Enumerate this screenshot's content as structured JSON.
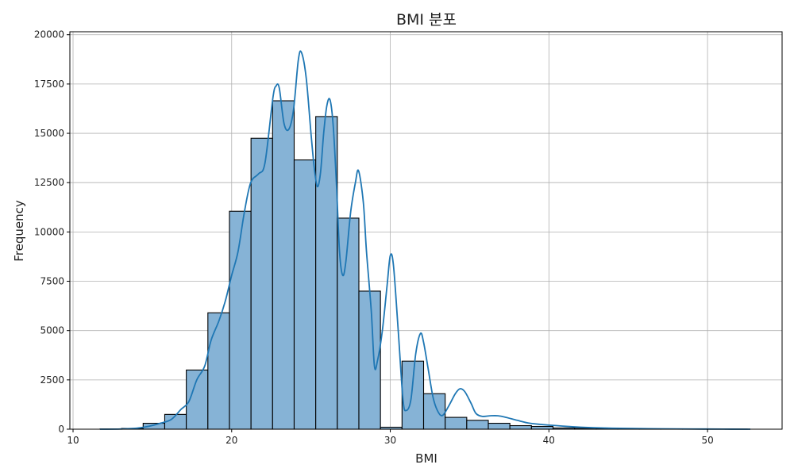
{
  "chart_data": {
    "type": "bar",
    "title": "BMI 분포",
    "xlabel": "BMI",
    "ylabel": "Frequency",
    "xlim": [
      9.8,
      54.7
    ],
    "ylim": [
      0,
      20150
    ],
    "grid": true,
    "x_ticks": [
      10,
      20,
      30,
      40,
      50
    ],
    "y_ticks": [
      0,
      2500,
      5000,
      7500,
      10000,
      12500,
      15000,
      17500,
      20000
    ],
    "bar_color": "#86b3d6",
    "bar_edge_color": "#000000",
    "kde_color": "#1f77b4",
    "bins": [
      {
        "x0": 11.7,
        "x1": 13.06,
        "value": 10
      },
      {
        "x0": 13.06,
        "x1": 14.42,
        "value": 40
      },
      {
        "x0": 14.42,
        "x1": 15.78,
        "value": 300
      },
      {
        "x0": 15.78,
        "x1": 17.14,
        "value": 750
      },
      {
        "x0": 17.14,
        "x1": 18.5,
        "value": 3000
      },
      {
        "x0": 18.5,
        "x1": 19.86,
        "value": 5900
      },
      {
        "x0": 19.86,
        "x1": 21.22,
        "value": 11050
      },
      {
        "x0": 21.22,
        "x1": 22.58,
        "value": 14750
      },
      {
        "x0": 22.58,
        "x1": 23.94,
        "value": 16650
      },
      {
        "x0": 23.94,
        "x1": 25.3,
        "value": 13650
      },
      {
        "x0": 25.3,
        "x1": 26.66,
        "value": 15850
      },
      {
        "x0": 26.66,
        "x1": 28.02,
        "value": 10700
      },
      {
        "x0": 28.02,
        "x1": 29.38,
        "value": 7000
      },
      {
        "x0": 29.38,
        "x1": 30.74,
        "value": 100
      },
      {
        "x0": 30.74,
        "x1": 32.1,
        "value": 3450
      },
      {
        "x0": 32.1,
        "x1": 33.46,
        "value": 1800
      },
      {
        "x0": 33.46,
        "x1": 34.82,
        "value": 600
      },
      {
        "x0": 34.82,
        "x1": 36.18,
        "value": 450
      },
      {
        "x0": 36.18,
        "x1": 37.54,
        "value": 300
      },
      {
        "x0": 37.54,
        "x1": 38.9,
        "value": 180
      },
      {
        "x0": 38.9,
        "x1": 40.26,
        "value": 140
      },
      {
        "x0": 40.26,
        "x1": 41.62,
        "value": 60
      },
      {
        "x0": 41.62,
        "x1": 42.98,
        "value": 50
      },
      {
        "x0": 42.98,
        "x1": 44.34,
        "value": 30
      },
      {
        "x0": 44.34,
        "x1": 45.7,
        "value": 20
      },
      {
        "x0": 45.7,
        "x1": 47.06,
        "value": 15
      },
      {
        "x0": 47.06,
        "x1": 48.42,
        "value": 10
      },
      {
        "x0": 48.42,
        "x1": 49.78,
        "value": 8
      },
      {
        "x0": 49.78,
        "x1": 51.14,
        "value": 5
      },
      {
        "x0": 51.14,
        "x1": 52.5,
        "value": 5
      }
    ],
    "kde": [
      [
        11.7,
        0
      ],
      [
        13.0,
        10
      ],
      [
        14.0,
        50
      ],
      [
        14.8,
        150
      ],
      [
        15.5,
        300
      ],
      [
        16.2,
        500
      ],
      [
        16.8,
        1000
      ],
      [
        17.3,
        1400
      ],
      [
        17.8,
        2500
      ],
      [
        18.3,
        3200
      ],
      [
        18.7,
        4500
      ],
      [
        19.2,
        5500
      ],
      [
        19.6,
        6500
      ],
      [
        20.0,
        7800
      ],
      [
        20.4,
        9000
      ],
      [
        20.8,
        11000
      ],
      [
        21.2,
        12500
      ],
      [
        21.7,
        12950
      ],
      [
        22.1,
        13500
      ],
      [
        22.6,
        16800
      ],
      [
        22.8,
        17400
      ],
      [
        23.0,
        17300
      ],
      [
        23.3,
        15500
      ],
      [
        23.6,
        15200
      ],
      [
        23.9,
        16200
      ],
      [
        24.2,
        18700
      ],
      [
        24.4,
        19100
      ],
      [
        24.7,
        17800
      ],
      [
        25.0,
        15000
      ],
      [
        25.2,
        13300
      ],
      [
        25.4,
        12300
      ],
      [
        25.6,
        13000
      ],
      [
        25.8,
        15000
      ],
      [
        26.0,
        16400
      ],
      [
        26.2,
        16700
      ],
      [
        26.4,
        15400
      ],
      [
        26.6,
        12500
      ],
      [
        26.8,
        9000
      ],
      [
        27.0,
        7800
      ],
      [
        27.2,
        8500
      ],
      [
        27.5,
        11000
      ],
      [
        27.8,
        12500
      ],
      [
        28.0,
        13100
      ],
      [
        28.3,
        11500
      ],
      [
        28.5,
        9000
      ],
      [
        28.8,
        6000
      ],
      [
        29.0,
        3200
      ],
      [
        29.2,
        3500
      ],
      [
        29.5,
        5000
      ],
      [
        29.8,
        7300
      ],
      [
        30.0,
        8800
      ],
      [
        30.2,
        8300
      ],
      [
        30.5,
        5000
      ],
      [
        30.8,
        1500
      ],
      [
        31.0,
        950
      ],
      [
        31.3,
        1500
      ],
      [
        31.6,
        3800
      ],
      [
        31.9,
        4850
      ],
      [
        32.1,
        4400
      ],
      [
        32.4,
        3000
      ],
      [
        32.7,
        1600
      ],
      [
        33.0,
        900
      ],
      [
        33.3,
        700
      ],
      [
        33.7,
        1200
      ],
      [
        34.1,
        1800
      ],
      [
        34.4,
        2050
      ],
      [
        34.7,
        1900
      ],
      [
        35.1,
        1300
      ],
      [
        35.4,
        800
      ],
      [
        35.8,
        650
      ],
      [
        36.3,
        680
      ],
      [
        36.8,
        680
      ],
      [
        37.3,
        600
      ],
      [
        38.0,
        450
      ],
      [
        38.8,
        300
      ],
      [
        39.8,
        220
      ],
      [
        40.8,
        160
      ],
      [
        42.0,
        100
      ],
      [
        43.5,
        60
      ],
      [
        45.0,
        40
      ],
      [
        47.0,
        20
      ],
      [
        49.0,
        10
      ],
      [
        51.0,
        5
      ],
      [
        52.7,
        0
      ]
    ]
  }
}
